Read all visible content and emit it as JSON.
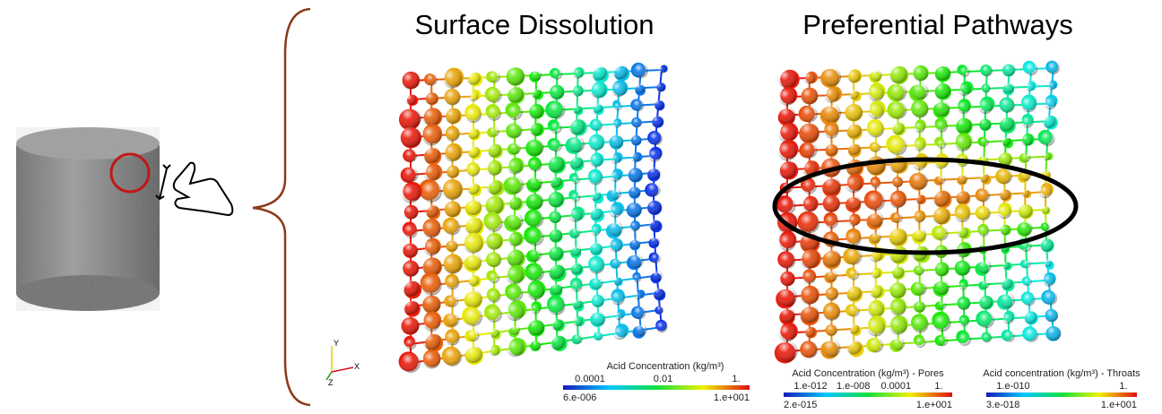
{
  "axes": {
    "y": "Y",
    "x": "X",
    "z": "Z"
  },
  "panels": [
    {
      "title": "Surface Dissolution",
      "colorbars": [
        {
          "title": "Acid Concentration (kg/m³)",
          "top_labels": [
            "0.0001",
            "0.01",
            "1."
          ],
          "bottom_labels": [
            "6.e-006",
            "1.e+001"
          ]
        }
      ]
    },
    {
      "title": "Preferential Pathways",
      "colorbars": [
        {
          "title": "Acid Concentration (kg/m³) - Pores",
          "top_labels": [
            "1.e-012",
            "1.e-008",
            "0.0001",
            "1."
          ],
          "bottom_labels": [
            "2.e-015",
            "1.e+001"
          ]
        },
        {
          "title": "Acid concentration (kg/m³) - Throats",
          "top_labels": [
            "1.e-010",
            "1."
          ],
          "bottom_labels": [
            "3.e-018",
            "1.e+001"
          ]
        }
      ]
    }
  ]
}
